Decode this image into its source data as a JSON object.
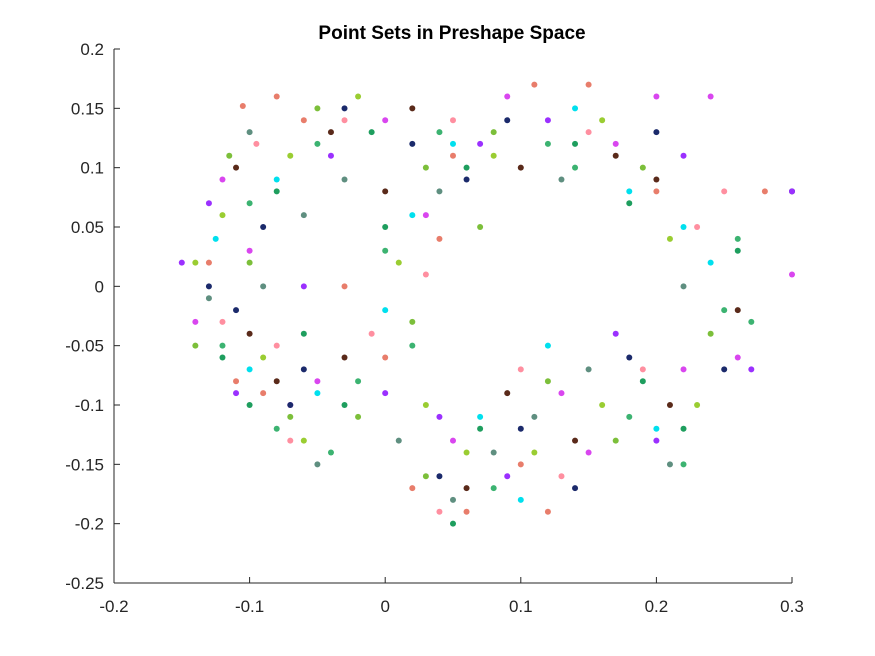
{
  "chart_data": {
    "type": "scatter",
    "title": "Point Sets in Preshape Space",
    "xlabel": "",
    "ylabel": "",
    "xlim": [
      -0.2,
      0.3
    ],
    "ylim": [
      -0.25,
      0.2
    ],
    "xticks": [
      -0.2,
      -0.1,
      0,
      0.1,
      0.2,
      0.3
    ],
    "yticks": [
      -0.25,
      -0.2,
      -0.15,
      -0.1,
      -0.05,
      0,
      0.05,
      0.1,
      0.15,
      0.2
    ],
    "xtick_labels": [
      "-0.2",
      "-0.1",
      "0",
      "0.1",
      "0.2",
      "0.3"
    ],
    "ytick_labels": [
      "-0.25",
      "-0.2",
      "-0.15",
      "-0.1",
      "-0.05",
      "0",
      "0.05",
      "0.1",
      "0.15",
      "0.2"
    ],
    "grid": false,
    "legend": "none",
    "series": [
      {
        "color": "#e87d6b",
        "points": [
          [
            -0.105,
            0.152
          ],
          [
            -0.06,
            0.14
          ],
          [
            0.05,
            0.11
          ],
          [
            0.15,
            0.17
          ],
          [
            -0.13,
            0.02
          ],
          [
            -0.11,
            -0.08
          ],
          [
            0.02,
            -0.17
          ],
          [
            0.06,
            -0.19
          ],
          [
            0.1,
            -0.15
          ],
          [
            -0.09,
            -0.09
          ],
          [
            0.2,
            0.08
          ],
          [
            0.28,
            0.08
          ],
          [
            0.12,
            -0.19
          ],
          [
            -0.03,
            0.0
          ],
          [
            0.0,
            -0.06
          ],
          [
            0.04,
            0.04
          ],
          [
            -0.08,
            0.16
          ],
          [
            0.11,
            0.17
          ]
        ]
      },
      {
        "color": "#d946ef",
        "points": [
          [
            -0.12,
            0.09
          ],
          [
            0.0,
            0.14
          ],
          [
            0.09,
            0.16
          ],
          [
            0.24,
            0.16
          ],
          [
            -0.14,
            -0.03
          ],
          [
            -0.07,
            -0.1
          ],
          [
            0.05,
            -0.13
          ],
          [
            0.13,
            -0.09
          ],
          [
            0.22,
            -0.07
          ],
          [
            0.2,
            0.16
          ],
          [
            -0.1,
            0.03
          ],
          [
            0.03,
            0.06
          ],
          [
            0.17,
            0.12
          ],
          [
            -0.05,
            -0.08
          ],
          [
            0.15,
            -0.14
          ],
          [
            0.26,
            -0.06
          ],
          [
            0.3,
            0.01
          ]
        ]
      },
      {
        "color": "#3cb371",
        "points": [
          [
            -0.1,
            0.07
          ],
          [
            -0.05,
            0.12
          ],
          [
            0.04,
            0.13
          ],
          [
            0.14,
            0.1
          ],
          [
            0.26,
            0.04
          ],
          [
            -0.12,
            -0.05
          ],
          [
            -0.02,
            -0.08
          ],
          [
            0.08,
            -0.17
          ],
          [
            0.18,
            -0.11
          ],
          [
            -0.08,
            -0.12
          ],
          [
            0.02,
            -0.05
          ],
          [
            0.25,
            -0.02
          ],
          [
            0.27,
            -0.03
          ],
          [
            0.22,
            -0.15
          ],
          [
            0.0,
            0.03
          ],
          [
            0.12,
            0.12
          ],
          [
            -0.04,
            -0.14
          ]
        ]
      },
      {
        "color": "#1b2a6b",
        "points": [
          [
            -0.09,
            0.05
          ],
          [
            -0.03,
            0.15
          ],
          [
            0.06,
            0.09
          ],
          [
            0.2,
            0.13
          ],
          [
            0.3,
            0.08
          ],
          [
            -0.11,
            -0.02
          ],
          [
            -0.06,
            -0.07
          ],
          [
            0.1,
            -0.12
          ],
          [
            0.04,
            -0.16
          ],
          [
            0.25,
            -0.07
          ],
          [
            -0.13,
            0.0
          ],
          [
            0.02,
            0.12
          ],
          [
            0.14,
            -0.17
          ],
          [
            0.09,
            0.14
          ],
          [
            -0.07,
            -0.1
          ],
          [
            0.18,
            -0.06
          ]
        ]
      },
      {
        "color": "#00e0ee",
        "points": [
          [
            -0.125,
            0.04
          ],
          [
            -0.08,
            0.09
          ],
          [
            0.05,
            0.12
          ],
          [
            0.22,
            0.05
          ],
          [
            -0.1,
            -0.07
          ],
          [
            0.07,
            -0.11
          ],
          [
            0.2,
            -0.12
          ],
          [
            0.14,
            0.15
          ],
          [
            0.02,
            0.06
          ],
          [
            -0.05,
            -0.09
          ],
          [
            0.24,
            0.02
          ],
          [
            0.12,
            -0.05
          ],
          [
            0.0,
            -0.02
          ],
          [
            0.18,
            0.08
          ],
          [
            0.1,
            -0.18
          ]
        ]
      },
      {
        "color": "#9acd32",
        "points": [
          [
            -0.07,
            0.11
          ],
          [
            -0.02,
            0.16
          ],
          [
            0.08,
            0.11
          ],
          [
            0.16,
            0.14
          ],
          [
            0.21,
            0.04
          ],
          [
            -0.12,
            0.06
          ],
          [
            -0.09,
            -0.06
          ],
          [
            0.06,
            -0.14
          ],
          [
            0.16,
            -0.1
          ],
          [
            -0.06,
            -0.13
          ],
          [
            0.03,
            -0.1
          ],
          [
            0.23,
            -0.1
          ],
          [
            -0.14,
            0.02
          ],
          [
            0.01,
            0.02
          ],
          [
            0.11,
            -0.14
          ]
        ]
      },
      {
        "color": "#5a2a1a",
        "points": [
          [
            -0.11,
            0.1
          ],
          [
            -0.04,
            0.13
          ],
          [
            0.02,
            0.15
          ],
          [
            0.1,
            0.1
          ],
          [
            0.2,
            0.09
          ],
          [
            -0.1,
            -0.04
          ],
          [
            -0.08,
            -0.08
          ],
          [
            0.06,
            -0.17
          ],
          [
            0.14,
            -0.13
          ],
          [
            0.21,
            -0.1
          ],
          [
            0.0,
            0.08
          ],
          [
            -0.03,
            -0.06
          ],
          [
            0.09,
            -0.09
          ],
          [
            0.26,
            -0.02
          ],
          [
            0.17,
            0.11
          ]
        ]
      },
      {
        "color": "#5f8f80",
        "points": [
          [
            -0.1,
            0.13
          ],
          [
            -0.06,
            0.06
          ],
          [
            0.04,
            0.08
          ],
          [
            0.13,
            0.09
          ],
          [
            0.21,
            -0.15
          ],
          [
            -0.13,
            -0.01
          ],
          [
            -0.05,
            -0.15
          ],
          [
            0.05,
            -0.18
          ],
          [
            0.11,
            -0.11
          ],
          [
            -0.09,
            0.0
          ],
          [
            0.22,
            0.0
          ],
          [
            0.01,
            -0.13
          ],
          [
            0.15,
            -0.07
          ],
          [
            -0.03,
            0.09
          ],
          [
            0.08,
            -0.14
          ]
        ]
      },
      {
        "color": "#7cbf3a",
        "points": [
          [
            -0.115,
            0.11
          ],
          [
            -0.05,
            0.15
          ],
          [
            0.03,
            0.1
          ],
          [
            0.07,
            0.05
          ],
          [
            0.19,
            0.1
          ],
          [
            -0.14,
            -0.05
          ],
          [
            -0.07,
            -0.11
          ],
          [
            0.03,
            -0.16
          ],
          [
            0.12,
            -0.08
          ],
          [
            0.24,
            -0.04
          ],
          [
            -0.1,
            0.02
          ],
          [
            0.02,
            -0.03
          ],
          [
            0.17,
            -0.13
          ],
          [
            0.08,
            0.13
          ],
          [
            -0.02,
            -0.11
          ]
        ]
      },
      {
        "color": "#1e9e5e",
        "points": [
          [
            -0.08,
            0.08
          ],
          [
            -0.01,
            0.13
          ],
          [
            0.06,
            0.1
          ],
          [
            0.18,
            0.07
          ],
          [
            0.26,
            0.03
          ],
          [
            -0.12,
            -0.06
          ],
          [
            -0.03,
            -0.1
          ],
          [
            0.07,
            -0.12
          ],
          [
            0.19,
            -0.08
          ],
          [
            -0.1,
            -0.1
          ],
          [
            0.14,
            0.12
          ],
          [
            0.0,
            0.05
          ],
          [
            0.22,
            -0.12
          ],
          [
            0.05,
            -0.2
          ],
          [
            -0.06,
            -0.04
          ]
        ]
      },
      {
        "color": "#9b30ff",
        "points": [
          [
            -0.13,
            0.07
          ],
          [
            -0.04,
            0.11
          ],
          [
            0.07,
            0.12
          ],
          [
            0.22,
            0.11
          ],
          [
            0.3,
            0.08
          ],
          [
            -0.11,
            -0.09
          ],
          [
            0.0,
            -0.09
          ],
          [
            0.09,
            -0.16
          ],
          [
            0.17,
            -0.04
          ],
          [
            0.27,
            -0.07
          ],
          [
            -0.06,
            0.0
          ],
          [
            0.12,
            0.14
          ],
          [
            0.04,
            -0.11
          ],
          [
            -0.15,
            0.02
          ],
          [
            0.2,
            -0.13
          ]
        ]
      },
      {
        "color": "#ff8fa0",
        "points": [
          [
            -0.095,
            0.12
          ],
          [
            -0.03,
            0.14
          ],
          [
            0.05,
            0.14
          ],
          [
            0.15,
            0.13
          ],
          [
            0.25,
            0.08
          ],
          [
            -0.12,
            -0.03
          ],
          [
            -0.08,
            -0.05
          ],
          [
            0.04,
            -0.19
          ],
          [
            0.13,
            -0.16
          ],
          [
            0.19,
            -0.07
          ],
          [
            -0.01,
            -0.04
          ],
          [
            0.1,
            -0.07
          ],
          [
            0.03,
            0.01
          ],
          [
            0.23,
            0.05
          ],
          [
            -0.07,
            -0.13
          ]
        ]
      }
    ]
  }
}
